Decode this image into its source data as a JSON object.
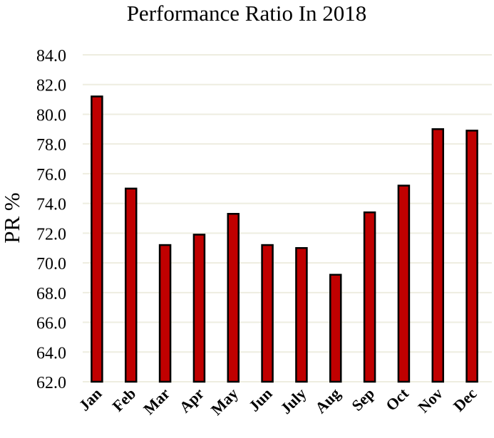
{
  "chart_data": {
    "type": "bar",
    "title": "Performance Ratio In 2018",
    "xlabel": "",
    "ylabel": "PR %",
    "ylim": [
      62,
      84
    ],
    "yticks": [
      "62.0",
      "64.0",
      "66.0",
      "68.0",
      "70.0",
      "72.0",
      "74.0",
      "76.0",
      "78.0",
      "80.0",
      "82.0",
      "84.0"
    ],
    "categories": [
      "Jan",
      "Feb",
      "Mar",
      "Apr",
      "May",
      "Jun",
      "July",
      "Aug",
      "Sep",
      "Oct",
      "Nov",
      "Dec"
    ],
    "values": [
      81.2,
      75.0,
      71.2,
      71.9,
      73.3,
      71.2,
      71.0,
      69.2,
      73.4,
      75.2,
      79.0,
      78.9
    ],
    "grid": true,
    "legend": "none",
    "colors": {
      "bar_fill": "#c00000",
      "bar_stroke": "#000000",
      "grid": "#eeede0"
    }
  }
}
